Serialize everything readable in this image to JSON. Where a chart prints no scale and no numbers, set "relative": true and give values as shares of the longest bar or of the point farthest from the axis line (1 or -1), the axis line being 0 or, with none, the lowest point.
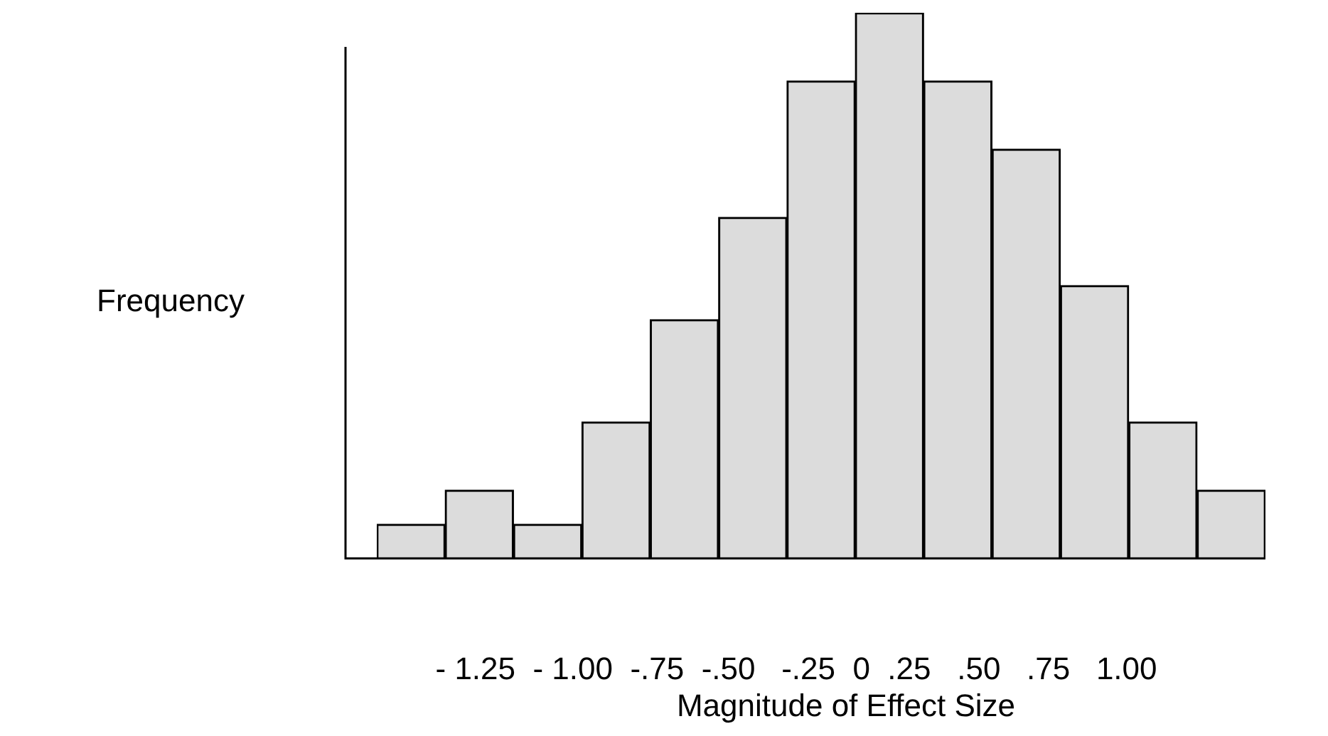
{
  "chart_data": {
    "type": "bar",
    "relative": true,
    "categories": [
      null,
      null,
      null,
      null,
      null,
      null,
      null,
      null,
      null,
      null,
      null,
      null,
      null
    ],
    "values": [
      0.0625,
      0.125,
      0.0625,
      0.25,
      0.4375,
      0.625,
      0.875,
      1,
      0.875,
      0.75,
      0.5,
      0.25,
      0.125
    ],
    "color": "#dcdcdc",
    "xlabel": "Magnitude of Effect Size",
    "ylabel": "Frequency",
    "annotations": [
      "- 1.25  - 1.00  -.75  -.50   -.25  0  .25   .50   .75   1.00"
    ]
  }
}
